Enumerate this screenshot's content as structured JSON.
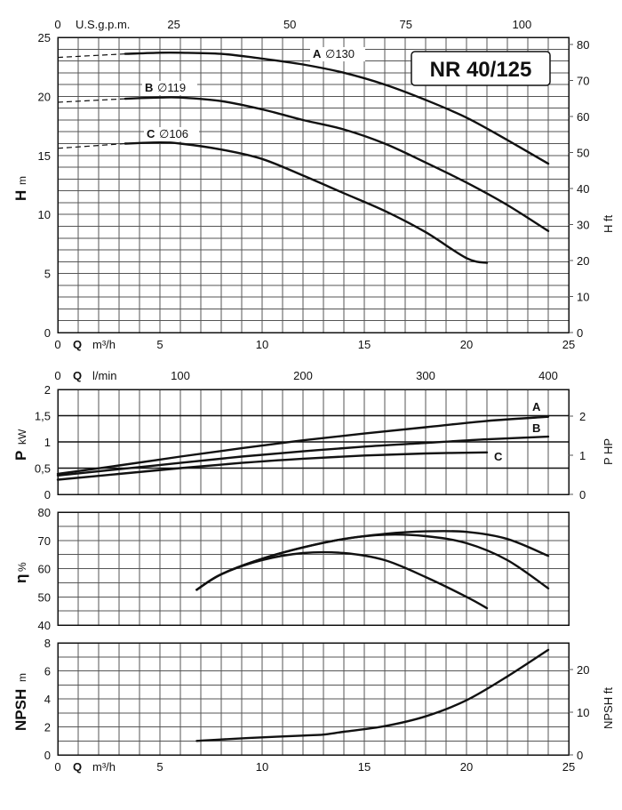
{
  "title": "NR 40/125",
  "chart_data": [
    {
      "id": "head",
      "type": "line",
      "x_bottom": {
        "label_q": "Q",
        "unit": "m³/h",
        "range": [
          0,
          25
        ],
        "ticks": [
          0,
          5,
          10,
          15,
          20,
          25
        ]
      },
      "x_top": {
        "label": "U.S.g.p.m.",
        "range_of_bottom": [
          0,
          25
        ],
        "factor": 4.4029,
        "ticks": [
          0,
          25,
          50,
          75,
          100
        ]
      },
      "y_left": {
        "label": "H",
        "unit": "m",
        "range": [
          0,
          25
        ],
        "ticks": [
          0,
          5,
          10,
          15,
          20,
          25
        ]
      },
      "y_right": {
        "label": "H",
        "unit": "ft",
        "factor": 3.2808,
        "ticks": [
          0,
          10,
          20,
          30,
          40,
          50,
          60,
          70,
          80
        ]
      },
      "grid": true,
      "series": [
        {
          "name": "A",
          "diameter": "130",
          "dashed_x": [
            0,
            3.3
          ],
          "dashed_y": [
            23.3,
            23.6
          ],
          "x": [
            3.3,
            5,
            6,
            8,
            10,
            12,
            14,
            16,
            18,
            20,
            22,
            24
          ],
          "y": [
            23.6,
            23.7,
            23.7,
            23.6,
            23.2,
            22.7,
            22.0,
            21.0,
            19.7,
            18.2,
            16.3,
            14.3
          ]
        },
        {
          "name": "B",
          "diameter": "119",
          "dashed_x": [
            0,
            3.3
          ],
          "dashed_y": [
            19.5,
            19.8
          ],
          "x": [
            3.3,
            5,
            6,
            8,
            10,
            12,
            14,
            16,
            18,
            20,
            22,
            24
          ],
          "y": [
            19.8,
            19.9,
            19.9,
            19.6,
            18.9,
            18.0,
            17.2,
            16.0,
            14.4,
            12.7,
            10.8,
            8.6
          ]
        },
        {
          "name": "C",
          "diameter": "106",
          "dashed_x": [
            0,
            3.3
          ],
          "dashed_y": [
            15.6,
            16.0
          ],
          "x": [
            3.3,
            5,
            6,
            8,
            10,
            12,
            14,
            16,
            18,
            20,
            21
          ],
          "y": [
            16.0,
            16.1,
            16.0,
            15.5,
            14.7,
            13.3,
            11.8,
            10.3,
            8.5,
            6.3,
            5.9
          ]
        }
      ]
    },
    {
      "id": "power",
      "type": "line",
      "x_top": {
        "label_q": "Q",
        "unit": "l/min",
        "range_of_bottom": [
          0,
          25
        ],
        "factor": 16.6667,
        "ticks": [
          0,
          100,
          200,
          300,
          400
        ]
      },
      "y_left": {
        "label": "P",
        "unit": "kW",
        "range": [
          0,
          2
        ],
        "ticks": [
          "0",
          "0,5",
          "1",
          "1,5",
          "2"
        ]
      },
      "y_right": {
        "label": "P",
        "unit": "HP",
        "factor": 1.341,
        "ticks": [
          0,
          1,
          2
        ]
      },
      "grid": true,
      "series": [
        {
          "name": "A",
          "x": [
            0,
            3,
            6,
            9,
            12,
            15,
            18,
            21,
            24
          ],
          "y": [
            0.39,
            0.55,
            0.72,
            0.88,
            1.03,
            1.16,
            1.28,
            1.4,
            1.48
          ]
        },
        {
          "name": "B",
          "x": [
            0,
            3,
            6,
            9,
            12,
            15,
            18,
            21,
            24
          ],
          "y": [
            0.36,
            0.48,
            0.6,
            0.72,
            0.82,
            0.91,
            0.98,
            1.05,
            1.1
          ]
        },
        {
          "name": "C",
          "x": [
            0,
            3,
            6,
            9,
            12,
            15,
            18,
            21
          ],
          "y": [
            0.28,
            0.39,
            0.5,
            0.6,
            0.68,
            0.74,
            0.78,
            0.8
          ]
        }
      ]
    },
    {
      "id": "efficiency",
      "type": "line",
      "y_left": {
        "label": "η",
        "unit": "%",
        "range": [
          40,
          80
        ],
        "ticks": [
          40,
          50,
          60,
          70,
          80
        ]
      },
      "grid": true,
      "series": [
        {
          "name": "A",
          "x": [
            6.8,
            8,
            10,
            12,
            14,
            16,
            18,
            20,
            22,
            24
          ],
          "y": [
            52.5,
            58.0,
            63.5,
            67.5,
            70.5,
            72.3,
            73.2,
            73.0,
            70.5,
            64.5
          ]
        },
        {
          "name": "B",
          "x": [
            6.8,
            8,
            10,
            12,
            14,
            16,
            18,
            20,
            22,
            24
          ],
          "y": [
            52.5,
            58.0,
            63.5,
            67.5,
            70.5,
            72.0,
            71.5,
            69.0,
            63.0,
            53.0
          ]
        },
        {
          "name": "C",
          "x": [
            6.8,
            8,
            10,
            12,
            14,
            16,
            18,
            20,
            21
          ],
          "y": [
            52.5,
            58.0,
            63.0,
            65.5,
            65.5,
            63.0,
            57.0,
            50.0,
            46.0
          ]
        }
      ]
    },
    {
      "id": "npsh",
      "type": "line",
      "x_bottom": {
        "label_q": "Q",
        "unit": "m³/h",
        "range": [
          0,
          25
        ],
        "ticks": [
          0,
          5,
          10,
          15,
          20,
          25
        ]
      },
      "y_left": {
        "label": "NPSH",
        "unit": "m",
        "range": [
          0,
          8
        ],
        "ticks": [
          0,
          2,
          4,
          6,
          8
        ]
      },
      "y_right": {
        "label": "NPSH",
        "unit": "ft",
        "factor": 3.2808,
        "ticks": [
          0,
          10,
          20
        ]
      },
      "grid": true,
      "series": [
        {
          "name": "NPSH",
          "x": [
            6.8,
            8,
            10,
            12,
            13,
            14,
            16,
            18,
            20,
            22,
            24
          ],
          "y": [
            1.0,
            1.1,
            1.25,
            1.38,
            1.45,
            1.65,
            2.05,
            2.75,
            3.9,
            5.6,
            7.5
          ]
        }
      ]
    }
  ]
}
